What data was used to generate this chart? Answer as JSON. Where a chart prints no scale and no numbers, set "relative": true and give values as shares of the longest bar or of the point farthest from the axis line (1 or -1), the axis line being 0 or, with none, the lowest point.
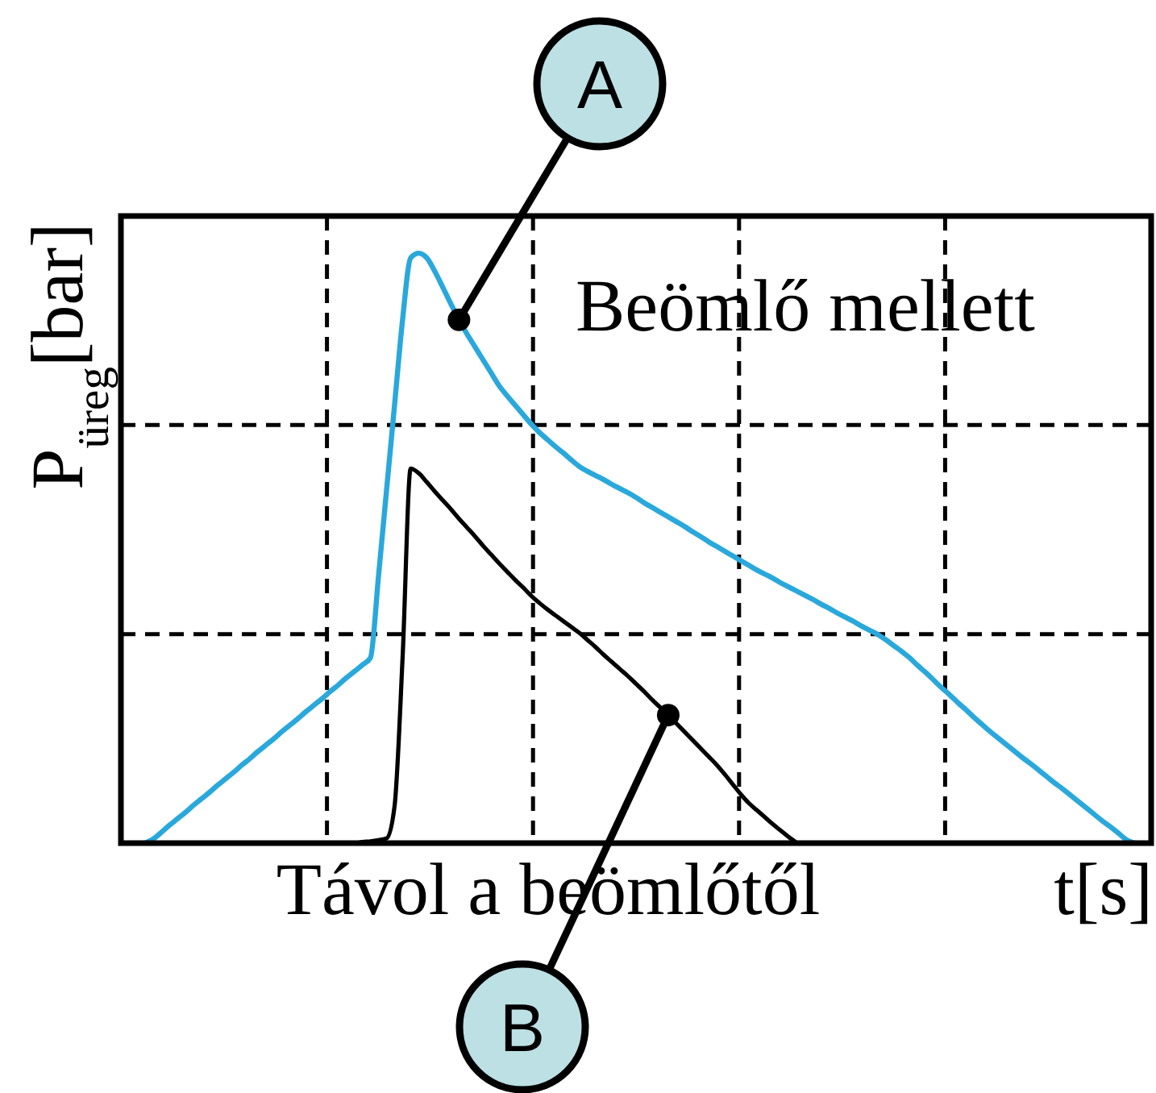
{
  "chart_data": {
    "type": "line",
    "relative": true,
    "grid": true,
    "xlabel": "t[s]",
    "ylabel": "P$_{üreg}$[bar]",
    "annotations": [
      "Beömlő mellett",
      "Távol a beömlőtől"
    ],
    "categories": [
      null,
      null,
      null,
      null,
      null,
      null,
      null,
      null,
      null,
      null,
      null,
      null,
      null,
      null,
      null,
      null,
      null,
      null,
      null,
      null,
      null,
      null,
      null,
      null,
      null,
      null,
      null,
      null,
      null,
      null,
      null,
      null,
      null,
      null,
      null,
      null,
      null,
      null,
      null,
      null,
      null,
      null,
      null,
      null,
      null,
      null,
      null,
      null,
      null,
      null,
      null,
      null,
      null,
      null,
      null,
      null,
      null,
      null,
      null,
      null,
      null,
      null,
      null,
      null,
      null,
      null,
      null,
      null,
      null,
      null,
      null,
      null,
      null,
      null,
      null,
      null,
      null,
      null,
      null,
      null,
      null,
      null,
      null,
      null,
      null,
      null,
      null,
      null,
      null,
      null,
      null,
      null,
      null,
      null,
      null,
      null,
      null,
      null,
      null,
      null,
      null,
      null,
      null,
      null,
      null,
      null,
      null,
      null,
      null,
      null,
      null,
      null,
      null,
      null,
      null,
      null,
      null,
      null,
      null,
      null,
      null,
      null,
      null,
      null,
      null,
      null,
      null,
      null,
      null
    ],
    "series": [
      {
        "name": "A",
        "color": "#2aa8dc",
        "values": [
          null,
          null,
          null,
          0,
          0.007,
          0.018,
          0.03,
          0.041,
          0.052,
          0.064,
          0.075,
          0.086,
          0.098,
          0.109,
          0.12,
          0.132,
          0.143,
          0.155,
          0.166,
          0.177,
          0.189,
          0.2,
          0.211,
          0.223,
          0.234,
          0.245,
          0.257,
          0.268,
          0.28,
          0.291,
          0.302,
          0.314,
          0.452,
          0.598,
          0.743,
          0.888,
          0.992,
          1,
          0.992,
          0.969,
          0.942,
          0.914,
          0.887,
          0.863,
          0.841,
          0.819,
          0.797,
          0.775,
          0.758,
          0.742,
          0.726,
          0.71,
          0.696,
          0.684,
          0.672,
          0.661,
          0.649,
          0.638,
          0.63,
          0.623,
          0.616,
          0.608,
          0.601,
          0.594,
          0.586,
          0.577,
          0.569,
          0.561,
          0.553,
          0.545,
          0.537,
          0.528,
          0.52,
          0.511,
          0.503,
          0.495,
          0.487,
          0.479,
          0.471,
          0.463,
          0.456,
          0.449,
          0.441,
          0.434,
          0.427,
          0.42,
          0.413,
          0.405,
          0.398,
          0.39,
          0.383,
          0.376,
          0.368,
          0.361,
          0.354,
          0.345,
          0.335,
          0.325,
          0.314,
          0.301,
          0.289,
          0.276,
          0.263,
          0.251,
          0.238,
          0.226,
          0.213,
          0.201,
          0.189,
          0.178,
          0.167,
          0.156,
          0.145,
          0.135,
          0.124,
          0.113,
          0.102,
          0.092,
          0.081,
          0.07,
          0.059,
          0.048,
          0.037,
          0.027,
          0.016,
          0.005,
          0,
          null,
          null
        ]
      },
      {
        "name": "B",
        "color": "#000000",
        "values": [
          null,
          null,
          null,
          null,
          null,
          null,
          null,
          null,
          null,
          null,
          null,
          null,
          null,
          null,
          null,
          null,
          null,
          null,
          null,
          null,
          null,
          null,
          null,
          null,
          null,
          null,
          0,
          0,
          0,
          0,
          0.002,
          0.003,
          0.005,
          0.008,
          0.063,
          0.316,
          0.635,
          0.627,
          0.612,
          0.596,
          0.581,
          0.566,
          0.55,
          0.535,
          0.52,
          0.504,
          0.489,
          0.474,
          0.46,
          0.446,
          0.433,
          0.419,
          0.407,
          0.396,
          0.386,
          0.376,
          0.366,
          0.356,
          0.344,
          0.332,
          0.319,
          0.307,
          0.295,
          0.283,
          0.27,
          0.257,
          0.243,
          0.23,
          0.217,
          0.203,
          0.189,
          0.175,
          0.161,
          0.147,
          0.133,
          0.117,
          0.1,
          0.083,
          0.068,
          0.056,
          0.044,
          0.032,
          0.021,
          0.01,
          0,
          null,
          null,
          null,
          null,
          null,
          null,
          null,
          null,
          null,
          null,
          null,
          null,
          null,
          null,
          null,
          null,
          null,
          null,
          null,
          null,
          null,
          null,
          null,
          null,
          null,
          null,
          null,
          null,
          null,
          null,
          null,
          null,
          null,
          null,
          null,
          null,
          null,
          null,
          null,
          null,
          null,
          null,
          null,
          null
        ]
      }
    ]
  }
}
